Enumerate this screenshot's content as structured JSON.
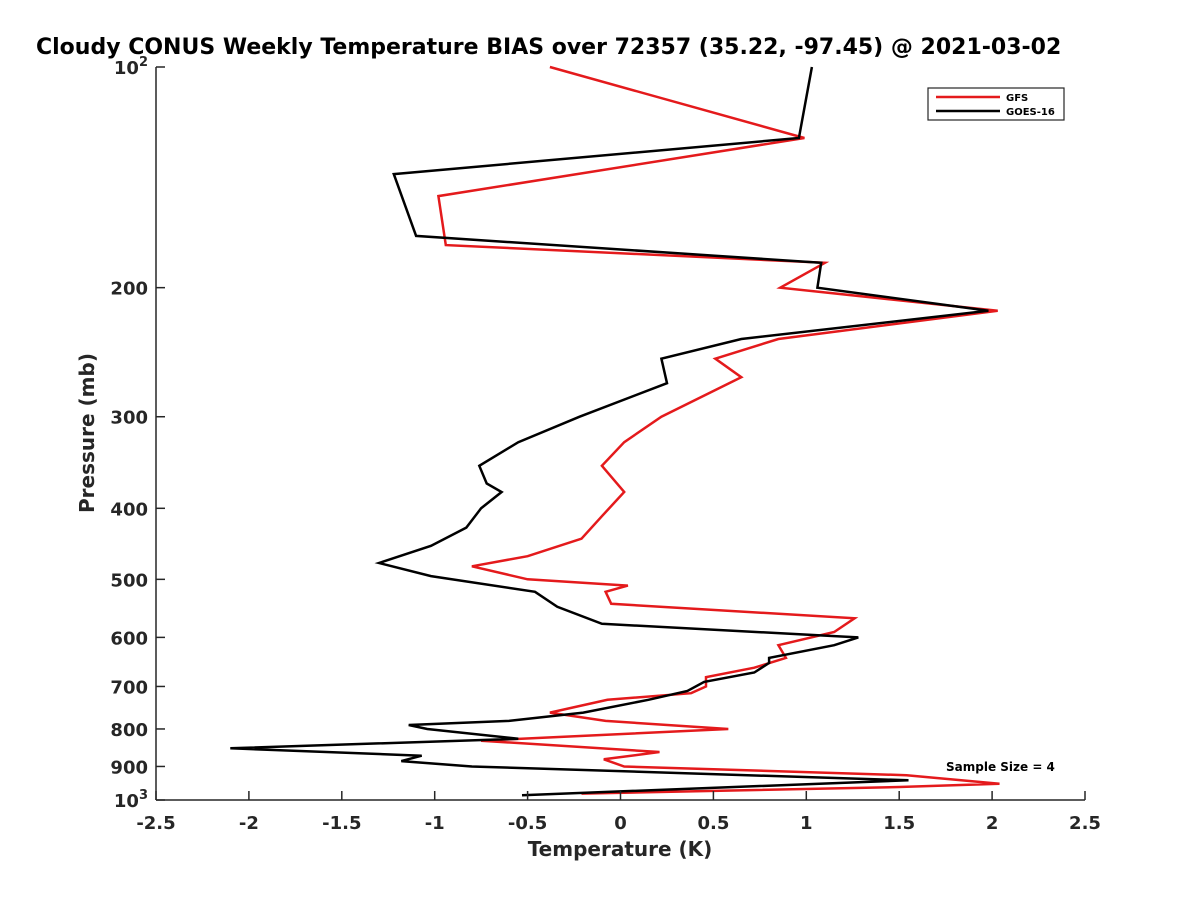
{
  "chart_data": {
    "type": "line",
    "title": "Cloudy CONUS Weekly Temperature BIAS over 72357 (35.22, -97.45) @ 2021-03-02",
    "xlabel": "Temperature (K)",
    "ylabel": "Pressure (mb)",
    "xlim": [
      -2.5,
      2.5
    ],
    "ylim": [
      1000,
      100
    ],
    "y_scale": "log",
    "x_ticks": [
      "-2.5",
      "-2",
      "-1.5",
      "-1",
      "-0.5",
      "0",
      "0.5",
      "1",
      "1.5",
      "2",
      "2.5"
    ],
    "y_ticks": [
      {
        "value": 100,
        "base": "10",
        "exp": "2"
      },
      {
        "value": 200,
        "label": "200"
      },
      {
        "value": 300,
        "label": "300"
      },
      {
        "value": 400,
        "label": "400"
      },
      {
        "value": 500,
        "label": "500"
      },
      {
        "value": 600,
        "label": "600"
      },
      {
        "value": 700,
        "label": "700"
      },
      {
        "value": 800,
        "label": "800"
      },
      {
        "value": 900,
        "label": "900"
      },
      {
        "value": 1000,
        "base": "10",
        "exp": "3"
      }
    ],
    "grid": false,
    "legend_position": "top-right",
    "series": [
      {
        "name": "GFS",
        "color": "#e41a1c",
        "points": [
          [
            -0.38,
            100
          ],
          [
            0.99,
            125
          ],
          [
            -0.98,
            150
          ],
          [
            -0.94,
            175
          ],
          [
            1.1,
            185
          ],
          [
            0.86,
            200
          ],
          [
            2.03,
            215
          ],
          [
            0.85,
            235
          ],
          [
            0.51,
            250
          ],
          [
            0.65,
            265
          ],
          [
            0.22,
            300
          ],
          [
            0.02,
            325
          ],
          [
            -0.1,
            350
          ],
          [
            0.02,
            380
          ],
          [
            -0.1,
            410
          ],
          [
            -0.21,
            440
          ],
          [
            -0.5,
            465
          ],
          [
            -0.8,
            480
          ],
          [
            -0.5,
            500
          ],
          [
            0.04,
            510
          ],
          [
            -0.08,
            520
          ],
          [
            -0.05,
            540
          ],
          [
            1.26,
            565
          ],
          [
            1.15,
            590
          ],
          [
            0.85,
            615
          ],
          [
            0.89,
            640
          ],
          [
            0.72,
            660
          ],
          [
            0.46,
            680
          ],
          [
            0.46,
            700
          ],
          [
            0.38,
            715
          ],
          [
            -0.07,
            730
          ],
          [
            -0.38,
            760
          ],
          [
            -0.08,
            780
          ],
          [
            0.58,
            800
          ],
          [
            -0.75,
            830
          ],
          [
            0.21,
            860
          ],
          [
            -0.09,
            880
          ],
          [
            0.02,
            900
          ],
          [
            1.54,
            925
          ],
          [
            2.04,
            950
          ],
          [
            1.5,
            960
          ],
          [
            -0.21,
            980
          ]
        ]
      },
      {
        "name": "GOES-16",
        "color": "#000000",
        "points": [
          [
            1.03,
            100
          ],
          [
            0.96,
            125
          ],
          [
            -1.22,
            140
          ],
          [
            -1.1,
            170
          ],
          [
            1.08,
            185
          ],
          [
            1.06,
            200
          ],
          [
            1.98,
            215
          ],
          [
            0.65,
            235
          ],
          [
            0.22,
            250
          ],
          [
            0.25,
            270
          ],
          [
            -0.22,
            300
          ],
          [
            -0.55,
            325
          ],
          [
            -0.76,
            350
          ],
          [
            -0.72,
            370
          ],
          [
            -0.64,
            380
          ],
          [
            -0.75,
            400
          ],
          [
            -0.83,
            425
          ],
          [
            -1.02,
            450
          ],
          [
            -1.3,
            475
          ],
          [
            -1.02,
            495
          ],
          [
            -0.46,
            520
          ],
          [
            -0.34,
            545
          ],
          [
            -0.1,
            575
          ],
          [
            1.28,
            600
          ],
          [
            1.15,
            615
          ],
          [
            0.8,
            640
          ],
          [
            0.8,
            650
          ],
          [
            0.72,
            670
          ],
          [
            0.45,
            690
          ],
          [
            0.36,
            710
          ],
          [
            0.15,
            730
          ],
          [
            -0.2,
            760
          ],
          [
            -0.6,
            780
          ],
          [
            -1.14,
            790
          ],
          [
            -1.04,
            800
          ],
          [
            -0.55,
            825
          ],
          [
            -2.1,
            850
          ],
          [
            -1.07,
            870
          ],
          [
            -1.18,
            885
          ],
          [
            -0.8,
            900
          ],
          [
            1.55,
            940
          ],
          [
            -0.53,
            985
          ]
        ]
      }
    ],
    "annotations": [
      {
        "text": "Sample Size = 4"
      }
    ]
  }
}
